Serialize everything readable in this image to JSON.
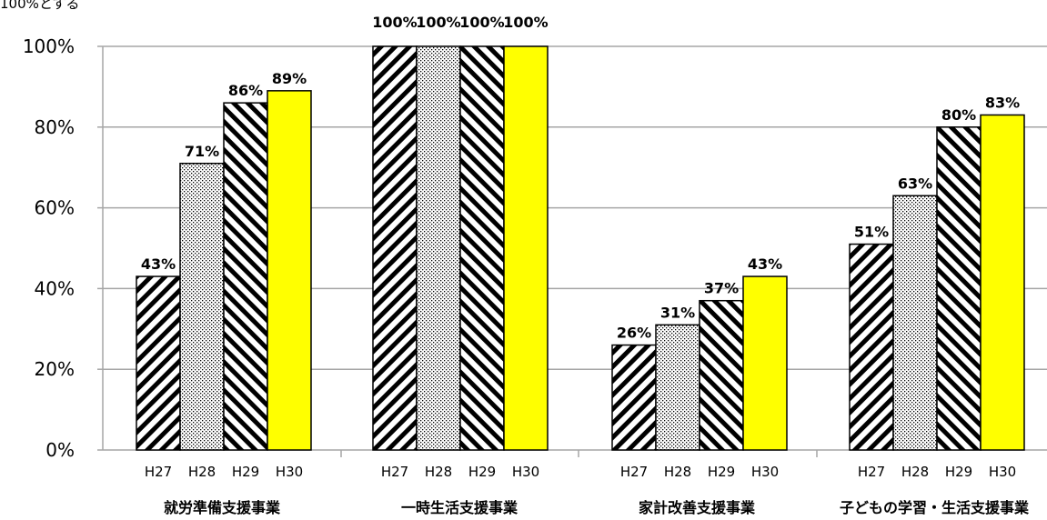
{
  "chart_data": {
    "type": "bar",
    "note": "100%とする",
    "categories": [
      "就労準備支援事業",
      "一時生活支援事業",
      "家計改善支援事業",
      "子どもの学習・生活支援事業"
    ],
    "sub_categories": [
      "H27",
      "H28",
      "H29",
      "H30"
    ],
    "values": [
      [
        43,
        71,
        86,
        89
      ],
      [
        100,
        100,
        100,
        100
      ],
      [
        26,
        31,
        37,
        43
      ],
      [
        51,
        63,
        80,
        83
      ]
    ],
    "value_labels": [
      [
        "43%",
        "71%",
        "86%",
        "89%"
      ],
      [
        "100%",
        "100%",
        "100%",
        "100%"
      ],
      [
        "26%",
        "31%",
        "37%",
        "43%"
      ],
      [
        "51%",
        "63%",
        "80%",
        "83%"
      ]
    ],
    "ylim": [
      0,
      100
    ],
    "yticks": [
      "0%",
      "20%",
      "40%",
      "60%",
      "80%",
      "100%"
    ],
    "grid": true,
    "colors": {
      "H27": "#ffffff",
      "H28": "#ffffff",
      "H29": "#ffffff",
      "H30": "#ffff00",
      "stroke": "#000000",
      "grid": "#a6a6a6"
    }
  }
}
